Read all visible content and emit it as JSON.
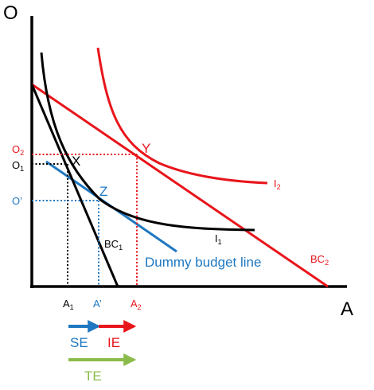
{
  "axes": {
    "y_label": "O",
    "x_label": "A"
  },
  "colors": {
    "black": "#000000",
    "red": "#e8151b",
    "blue": "#1f78c1",
    "green": "#8bbb4a"
  },
  "points": {
    "x": "X",
    "y": "Y",
    "z": "Z"
  },
  "curves": {
    "i1": {
      "main": "I",
      "sub": "1"
    },
    "i2": {
      "main": "I",
      "sub": "2"
    },
    "bc1": {
      "main": "BC",
      "sub": "1"
    },
    "bc2": {
      "main": "BC",
      "sub": "2"
    },
    "dummy": "Dummy budget line"
  },
  "ticks": {
    "o2": {
      "main": "O",
      "sub": "2"
    },
    "o1": {
      "main": "O",
      "sub": "1"
    },
    "oprime": "O’",
    "a1": {
      "main": "A",
      "sub": "1"
    },
    "aprime": "A’",
    "a2": {
      "main": "A",
      "sub": "2"
    }
  },
  "effects": {
    "se": "SE",
    "ie": "IE",
    "te": "TE"
  }
}
